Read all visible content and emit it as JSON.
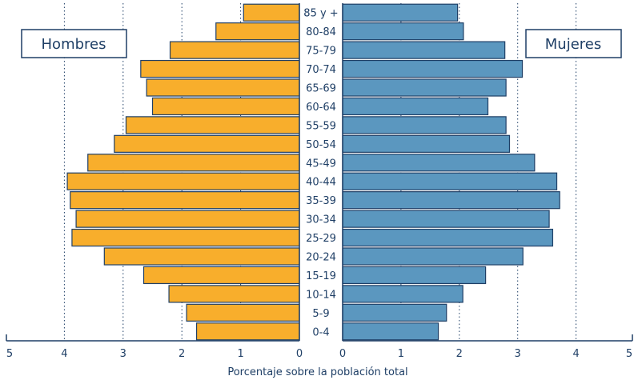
{
  "chart_data": {
    "type": "bar",
    "orientation": "horizontal",
    "style": "population-pyramid",
    "categories": [
      "85 y +",
      "80-84",
      "75-79",
      "70-74",
      "65-69",
      "60-64",
      "55-59",
      "50-54",
      "45-49",
      "40-44",
      "35-39",
      "30-34",
      "25-29",
      "20-24",
      "15-19",
      "10-14",
      "5-9",
      "0-4"
    ],
    "series": [
      {
        "name": "Hombres",
        "side": "left",
        "color": "#f8ae2c",
        "values": [
          0.95,
          1.42,
          2.2,
          2.7,
          2.6,
          2.5,
          2.95,
          3.15,
          3.6,
          3.95,
          3.9,
          3.8,
          3.87,
          3.32,
          2.65,
          2.22,
          1.92,
          1.75
        ]
      },
      {
        "name": "Mujeres",
        "side": "right",
        "color": "#5b97bf",
        "values": [
          1.97,
          2.07,
          2.78,
          3.08,
          2.8,
          2.49,
          2.8,
          2.86,
          3.29,
          3.67,
          3.72,
          3.54,
          3.6,
          3.09,
          2.45,
          2.06,
          1.78,
          1.64
        ]
      }
    ],
    "xlabel": "Porcentaje sobre la población total",
    "xlim": [
      0,
      5
    ],
    "xticks_left": [
      "5",
      "4",
      "3",
      "2",
      "1",
      "0"
    ],
    "xticks_right": [
      "0",
      "1",
      "2",
      "3",
      "4",
      "5"
    ],
    "grid": "vertical dotted at 1,2,3,4",
    "legend": "Hombres top-left, Mujeres top-right",
    "colors": {
      "bar_stroke": "#1f3f66",
      "text": "#1f3f66",
      "axis": "#1f3f66"
    }
  }
}
